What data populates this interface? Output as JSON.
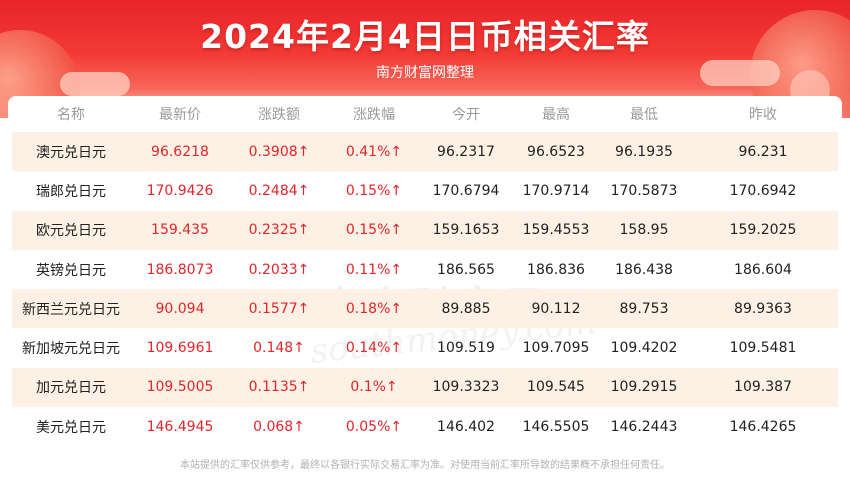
{
  "header": {
    "title": "2024年2月4日日币相关汇率",
    "subtitle": "南方财富网整理"
  },
  "watermark": {
    "cn": "南方财富网",
    "en": "southmoney.com"
  },
  "table": {
    "columns": [
      "名称",
      "最新价",
      "涨跌额",
      "涨跌幅",
      "今开",
      "最高",
      "最低",
      "昨收"
    ],
    "rows": [
      [
        "澳元兑日元",
        "96.6218",
        "0.3908↑",
        "0.41%↑",
        "96.2317",
        "96.6523",
        "96.1935",
        "96.231"
      ],
      [
        "瑞郎兑日元",
        "170.9426",
        "0.2484↑",
        "0.15%↑",
        "170.6794",
        "170.9714",
        "170.5873",
        "170.6942"
      ],
      [
        "欧元兑日元",
        "159.435",
        "0.2325↑",
        "0.15%↑",
        "159.1653",
        "159.4553",
        "158.95",
        "159.2025"
      ],
      [
        "英镑兑日元",
        "186.8073",
        "0.2033↑",
        "0.11%↑",
        "186.565",
        "186.836",
        "186.438",
        "186.604"
      ],
      [
        "新西兰元兑日元",
        "90.094",
        "0.1577↑",
        "0.18%↑",
        "89.885",
        "90.112",
        "89.753",
        "89.9363"
      ],
      [
        "新加坡元兑日元",
        "109.6961",
        "0.148↑",
        "0.14%↑",
        "109.519",
        "109.7095",
        "109.4202",
        "109.5481"
      ],
      [
        "加元兑日元",
        "109.5005",
        "0.1135↑",
        "0.1%↑",
        "109.3323",
        "109.545",
        "109.2915",
        "109.387"
      ],
      [
        "美元兑日元",
        "146.4945",
        "0.068↑",
        "0.05%↑",
        "146.402",
        "146.5505",
        "146.2443",
        "146.4265"
      ]
    ]
  },
  "footer": {
    "disclaimer": "本站提供的汇率仅供参考，最终以各银行实际交易汇率为准。对使用当前汇率所导致的结果概不承担任何责任。"
  },
  "colors": {
    "up": "#e4252a",
    "banner": "#e8242a",
    "row_alt": "#fdf1e5"
  }
}
